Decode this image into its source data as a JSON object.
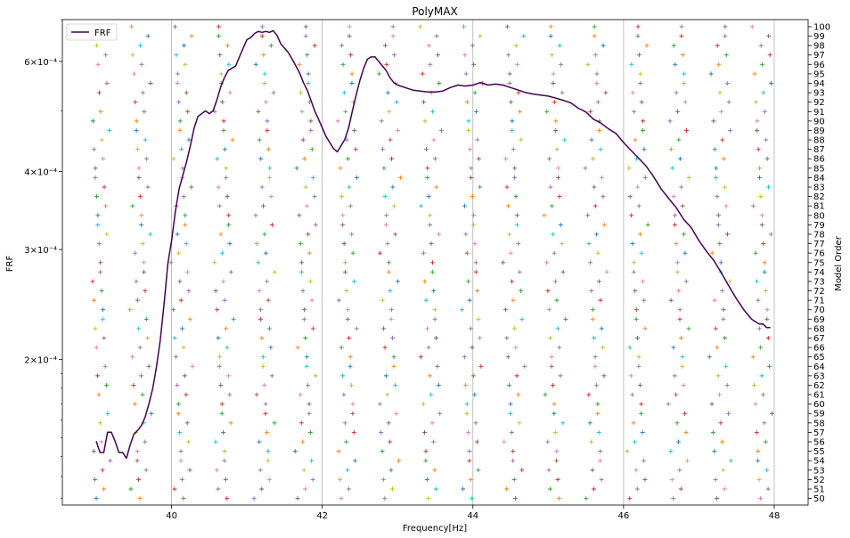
{
  "chart_data": {
    "type": "line",
    "title": "PolyMAX",
    "xlabel": "Frequency[Hz]",
    "ylabel": "FRF",
    "y2label": "Model Order",
    "xlim": [
      38.55,
      48.45
    ],
    "ylim": [
      0.000117,
      0.0007
    ],
    "yscale": "log",
    "y2lim": [
      49.3,
      100.75
    ],
    "grid": "x-major",
    "legend": {
      "position": "top-left",
      "entries": [
        "FRF"
      ]
    },
    "x_ticks": [
      {
        "value": 40,
        "label": "40"
      },
      {
        "value": 42,
        "label": "42"
      },
      {
        "value": 44,
        "label": "44"
      },
      {
        "value": 46,
        "label": "46"
      },
      {
        "value": 48,
        "label": "48"
      }
    ],
    "y_ticks": [
      {
        "value": 0.0002,
        "label": "2×10⁻⁴"
      },
      {
        "value": 0.0003,
        "label": "3×10⁻⁴"
      },
      {
        "value": 0.0004,
        "label": "4×10⁻⁴"
      },
      {
        "value": 0.0006,
        "label": "6×10⁻⁴"
      }
    ],
    "y2_ticks": [
      50,
      51,
      52,
      53,
      54,
      55,
      56,
      57,
      58,
      59,
      60,
      61,
      62,
      63,
      64,
      65,
      66,
      67,
      68,
      69,
      70,
      71,
      72,
      73,
      74,
      75,
      76,
      77,
      78,
      79,
      80,
      81,
      82,
      83,
      84,
      85,
      86,
      87,
      88,
      89,
      90,
      91,
      92,
      93,
      94,
      95,
      96,
      97,
      98,
      99,
      100
    ],
    "series": [
      {
        "name": "FRF",
        "color": "#440154",
        "x": [
          39.0,
          39.05,
          39.1,
          39.15,
          39.2,
          39.25,
          39.3,
          39.35,
          39.4,
          39.45,
          39.5,
          39.55,
          39.6,
          39.65,
          39.7,
          39.75,
          39.8,
          39.85,
          39.9,
          39.95,
          40.0,
          40.05,
          40.1,
          40.15,
          40.2,
          40.25,
          40.3,
          40.35,
          40.4,
          40.45,
          40.5,
          40.55,
          40.6,
          40.65,
          40.7,
          40.75,
          40.8,
          40.85,
          40.9,
          40.95,
          41.0,
          41.05,
          41.1,
          41.15,
          41.2,
          41.25,
          41.3,
          41.35,
          41.4,
          41.45,
          41.5,
          41.55,
          41.6,
          41.65,
          41.7,
          41.75,
          41.8,
          41.85,
          41.9,
          41.95,
          42.0,
          42.05,
          42.1,
          42.15,
          42.2,
          42.25,
          42.3,
          42.35,
          42.4,
          42.45,
          42.5,
          42.55,
          42.6,
          42.65,
          42.7,
          42.75,
          42.8,
          42.85,
          42.9,
          42.95,
          43.0,
          43.1,
          43.2,
          43.3,
          43.4,
          43.5,
          43.6,
          43.7,
          43.8,
          43.9,
          44.0,
          44.1,
          44.2,
          44.3,
          44.4,
          44.5,
          44.6,
          44.7,
          44.8,
          44.9,
          45.0,
          45.1,
          45.2,
          45.3,
          45.4,
          45.5,
          45.6,
          45.7,
          45.8,
          45.9,
          46.0,
          46.1,
          46.2,
          46.3,
          46.4,
          46.5,
          46.6,
          46.7,
          46.8,
          46.9,
          47.0,
          47.1,
          47.2,
          47.3,
          47.4,
          47.5,
          47.6,
          47.7,
          47.8,
          47.85,
          47.9,
          47.95
        ],
        "y": [
          0.000148,
          0.000142,
          0.000142,
          0.000153,
          0.000153,
          0.000148,
          0.000142,
          0.000142,
          0.000139,
          0.000146,
          0.000152,
          0.000154,
          0.000157,
          0.000162,
          0.00017,
          0.00018,
          0.000195,
          0.000215,
          0.000245,
          0.000285,
          0.00031,
          0.000345,
          0.000375,
          0.000395,
          0.000415,
          0.00044,
          0.00047,
          0.00049,
          0.000495,
          0.0005,
          0.000495,
          0.0005,
          0.00052,
          0.000545,
          0.000565,
          0.00058,
          0.000585,
          0.00059,
          0.00061,
          0.00063,
          0.00065,
          0.000655,
          0.000665,
          0.00067,
          0.000668,
          0.00067,
          0.000668,
          0.000672,
          0.00066,
          0.00064,
          0.00063,
          0.00062,
          0.000605,
          0.00059,
          0.000575,
          0.000555,
          0.00054,
          0.00052,
          0.0005,
          0.000485,
          0.00047,
          0.000455,
          0.000445,
          0.000435,
          0.00043,
          0.00044,
          0.00045,
          0.00047,
          0.0005,
          0.00053,
          0.00056,
          0.000585,
          0.000605,
          0.00061,
          0.00061,
          0.0006,
          0.00059,
          0.00058,
          0.000565,
          0.000555,
          0.00055,
          0.000545,
          0.00054,
          0.000538,
          0.000536,
          0.000536,
          0.000538,
          0.000545,
          0.00055,
          0.000548,
          0.00055,
          0.000555,
          0.00055,
          0.000552,
          0.00055,
          0.000545,
          0.00054,
          0.000535,
          0.000532,
          0.00053,
          0.000528,
          0.000524,
          0.00052,
          0.000515,
          0.000505,
          0.000498,
          0.000485,
          0.000478,
          0.000468,
          0.00046,
          0.000445,
          0.000432,
          0.00042,
          0.000408,
          0.000392,
          0.000375,
          0.000362,
          0.00035,
          0.000335,
          0.000325,
          0.00031,
          0.000298,
          0.000288,
          0.000275,
          0.000262,
          0.00025,
          0.00024,
          0.000232,
          0.000228,
          0.000228,
          0.000225,
          0.000225
        ]
      }
    ],
    "stabilization_markers": {
      "marker": "+",
      "colors": [
        "#1f77b4",
        "#ff7f0e",
        "#2ca02c",
        "#d62728",
        "#9467bd",
        "#8c564b",
        "#e377c2",
        "#7f7f7f",
        "#bcbd22",
        "#17becf"
      ],
      "orders": [
        50,
        51,
        52,
        53,
        54,
        55,
        56,
        57,
        58,
        59,
        60,
        61,
        62,
        63,
        64,
        65,
        66,
        67,
        68,
        69,
        70,
        71,
        72,
        73,
        74,
        75,
        76,
        77,
        78,
        79,
        80,
        81,
        82,
        83,
        84,
        85,
        86,
        87,
        88,
        89,
        90,
        91,
        92,
        93,
        94,
        95,
        96,
        97,
        98,
        99,
        100
      ],
      "frequencies": [
        39.0,
        39.55,
        40.1,
        40.65,
        41.2,
        41.75,
        42.3,
        42.85,
        43.4,
        43.95,
        44.5,
        45.05,
        45.6,
        46.15,
        46.7,
        47.25,
        47.8
      ]
    }
  }
}
